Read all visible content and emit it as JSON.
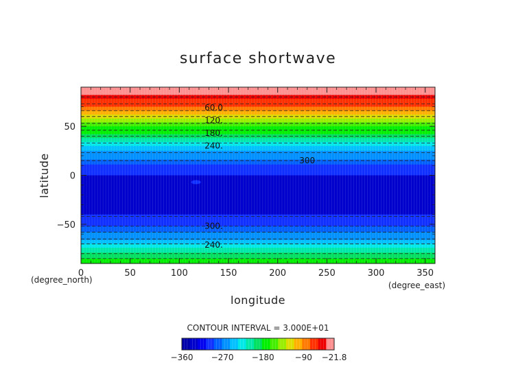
{
  "chart_data": {
    "type": "heatmap",
    "title": "surface shortwave",
    "xlabel": "longitude",
    "ylabel": "latitude",
    "x_unit": "(degree_east)",
    "y_unit": "(degree_north)",
    "xlim": [
      0,
      360
    ],
    "ylim": [
      -90,
      90
    ],
    "x_ticks": [
      0,
      50,
      100,
      150,
      200,
      250,
      300,
      350
    ],
    "y_ticks": [
      -50,
      0,
      50
    ],
    "contour_interval_text": "CONTOUR INTERVAL = 3.000E+01",
    "colorbar": {
      "tick_labels": [
        "-360",
        "-270",
        "-180",
        "-90",
        "-21.8"
      ],
      "tick_values": [
        -360,
        -270,
        -180,
        -90,
        -21.8
      ],
      "min": -360,
      "max": -21.8,
      "colors": [
        "#0000aa",
        "#0000cc",
        "#0000ee",
        "#1030ff",
        "#0060ff",
        "#0090ff",
        "#00c0ff",
        "#00e8e8",
        "#00e8a8",
        "#00e060",
        "#00ee00",
        "#44ee00",
        "#99ee00",
        "#dddd00",
        "#ffb000",
        "#ff7a00",
        "#ff3000",
        "#ee0000",
        "#ff9090"
      ]
    },
    "bands": [
      {
        "lat_from": 90,
        "lat_to": 82,
        "value": -30
      },
      {
        "lat_from": 82,
        "lat_to": 78,
        "value": -45
      },
      {
        "lat_from": 78,
        "lat_to": 74,
        "value": -60
      },
      {
        "lat_from": 74,
        "lat_to": 70,
        "value": -75
      },
      {
        "lat_from": 70,
        "lat_to": 66,
        "value": -90
      },
      {
        "lat_from": 66,
        "lat_to": 62,
        "value": -105
      },
      {
        "lat_from": 62,
        "lat_to": 58,
        "value": -120
      },
      {
        "lat_from": 58,
        "lat_to": 54,
        "value": -135
      },
      {
        "lat_from": 54,
        "lat_to": 50,
        "value": -150
      },
      {
        "lat_from": 50,
        "lat_to": 46,
        "value": -165
      },
      {
        "lat_from": 46,
        "lat_to": 42,
        "value": -180
      },
      {
        "lat_from": 42,
        "lat_to": 38,
        "value": -195
      },
      {
        "lat_from": 38,
        "lat_to": 34,
        "value": -210
      },
      {
        "lat_from": 34,
        "lat_to": 30,
        "value": -225
      },
      {
        "lat_from": 30,
        "lat_to": 25,
        "value": -240
      },
      {
        "lat_from": 25,
        "lat_to": 21,
        "value": -255
      },
      {
        "lat_from": 21,
        "lat_to": 16,
        "value": -270
      },
      {
        "lat_from": 16,
        "lat_to": 11,
        "value": -285
      },
      {
        "lat_from": 11,
        "lat_to": 0,
        "value": -300
      },
      {
        "lat_from": 0,
        "lat_to": -40,
        "value": -330
      },
      {
        "lat_from": -40,
        "lat_to": -52,
        "value": -300
      },
      {
        "lat_from": -52,
        "lat_to": -58,
        "value": -285
      },
      {
        "lat_from": -58,
        "lat_to": -62,
        "value": -270
      },
      {
        "lat_from": -62,
        "lat_to": -66,
        "value": -255
      },
      {
        "lat_from": -66,
        "lat_to": -70,
        "value": -240
      },
      {
        "lat_from": -70,
        "lat_to": -74,
        "value": -225
      },
      {
        "lat_from": -74,
        "lat_to": -79,
        "value": -210
      },
      {
        "lat_from": -79,
        "lat_to": -85,
        "value": -195
      },
      {
        "lat_from": -85,
        "lat_to": -90,
        "value": -180
      }
    ],
    "contour_lines": [
      80,
      73,
      66,
      60,
      53,
      46,
      40,
      33,
      23,
      15,
      -42,
      -52,
      -58,
      -65,
      -70,
      -80,
      -85
    ],
    "contour_labels": [
      {
        "text": "60.0",
        "lon": 135,
        "lat": 69
      },
      {
        "text": "120.",
        "lon": 135,
        "lat": 56
      },
      {
        "text": "180.",
        "lon": 135,
        "lat": 43
      },
      {
        "text": "240.",
        "lon": 135,
        "lat": 30
      },
      {
        "text": "300",
        "lon": 230,
        "lat": 15
      },
      {
        "text": "300.",
        "lon": 135,
        "lat": -52
      },
      {
        "text": "240.",
        "lon": 135,
        "lat": -71
      }
    ],
    "features": [
      {
        "lon": 117,
        "lat": -7,
        "value": -300
      }
    ]
  }
}
